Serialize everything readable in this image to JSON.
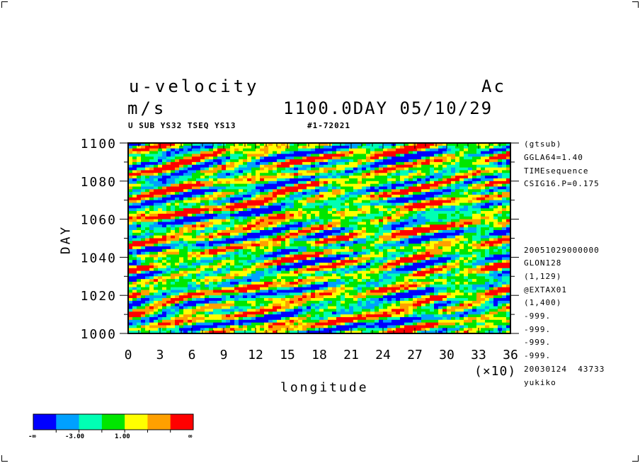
{
  "header": {
    "title_left": "u-velocity",
    "title_right": "Ac",
    "unit": "m/s",
    "time": "1100.0DAY 05/10/29",
    "sub_left": "U SUB YS32 TSEQ YS13",
    "sub_right": "#1-72021"
  },
  "info_block": [
    "(gtsub)",
    "GGLA64=1.40",
    "TIMEsequence",
    "CSIG16.P=0.175",
    "20051029000000",
    "GLON128",
    "(1,129)",
    "@EXTAX01",
    "(1,400)",
    "-999.",
    "-999.",
    "-999.",
    "-999.",
    "20030124  43733",
    "yukiko"
  ],
  "colorbar": {
    "colors": [
      "#0000ff",
      "#00a0ff",
      "#00ffb4",
      "#00e600",
      "#ffff00",
      "#ffa000",
      "#ff0000"
    ],
    "labels": [
      "-∞",
      "-3.00",
      "1.00",
      "∞"
    ]
  },
  "chart_data": {
    "type": "heatmap",
    "title": "u-velocity",
    "xlabel": "longitude",
    "ylabel": "DAY",
    "x_scale_note": "(×10)",
    "xlim": [
      0,
      36
    ],
    "ylim": [
      1000,
      1100
    ],
    "x_ticks": [
      "0",
      "3",
      "6",
      "9",
      "12",
      "15",
      "18",
      "21",
      "24",
      "27",
      "30",
      "33",
      "36"
    ],
    "y_ticks": [
      "1000",
      "1020",
      "1040",
      "1060",
      "1080",
      "1100"
    ],
    "color_levels": [
      "-∞",
      "-3.00",
      "1.00",
      "∞"
    ],
    "z_pattern": "Noisy u-velocity field in longitude–time space: elongated eastward-tilted bands alternating between strong negative (blue) and strong positive (red) values, with transitional cyan/green/yellow/orange in between."
  }
}
